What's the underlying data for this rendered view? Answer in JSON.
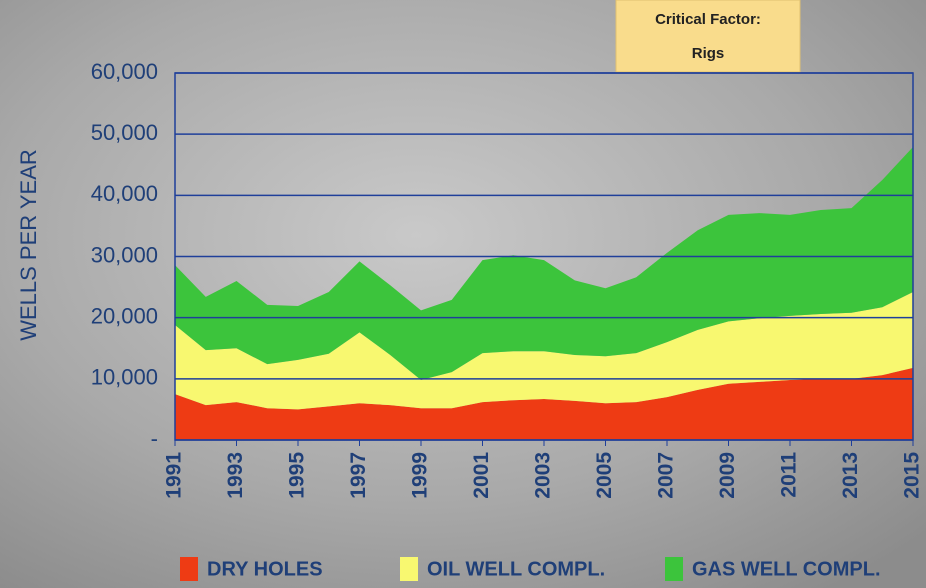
{
  "chart_data": {
    "type": "stacked-area",
    "ylabel": "WELLS PER YEAR",
    "annotation": {
      "title": "Critical Factor:",
      "text": "Rigs"
    },
    "x": [
      1991,
      1992,
      1993,
      1994,
      1995,
      1996,
      1997,
      1998,
      1999,
      2000,
      2001,
      2002,
      2003,
      2004,
      2005,
      2006,
      2007,
      2008,
      2009,
      2010,
      2011,
      2012,
      2013,
      2014,
      2015
    ],
    "xlim": [
      1991,
      2015
    ],
    "xticks": [
      1991,
      1993,
      1995,
      1997,
      1999,
      2001,
      2003,
      2005,
      2007,
      2009,
      2011,
      2013,
      2015
    ],
    "ylim": [
      0,
      60000
    ],
    "yticks": [
      {
        "value": 0,
        "label": "-"
      },
      {
        "value": 10000,
        "label": "10,000"
      },
      {
        "value": 20000,
        "label": "20,000"
      },
      {
        "value": 30000,
        "label": "30,000"
      },
      {
        "value": 40000,
        "label": "40,000"
      },
      {
        "value": 50000,
        "label": "50,000"
      },
      {
        "value": 60000,
        "label": "60,000"
      }
    ],
    "grid": true,
    "series": [
      {
        "name": "DRY HOLES",
        "color": "#ee3b14",
        "values": [
          7500,
          5700,
          6200,
          5200,
          5000,
          5500,
          6000,
          5700,
          5200,
          5200,
          6200,
          6500,
          6700,
          6400,
          6000,
          6200,
          7000,
          8200,
          9200,
          9500,
          9800,
          10000,
          10000,
          10600,
          11800
        ]
      },
      {
        "name": "OIL WELL COMPL.",
        "color": "#f8f870",
        "values": [
          11300,
          9000,
          8800,
          7200,
          8100,
          8600,
          11600,
          8200,
          4600,
          5900,
          8000,
          8000,
          7800,
          7500,
          7700,
          8000,
          9000,
          9800,
          10200,
          10400,
          10500,
          10600,
          10800,
          11100,
          12400
        ]
      },
      {
        "name": "GAS WELL COMPL.",
        "color": "#3cc43c",
        "values": [
          9800,
          8700,
          11000,
          9700,
          8800,
          10100,
          11600,
          11400,
          11400,
          11800,
          15200,
          15700,
          14900,
          12200,
          11100,
          12400,
          14600,
          16300,
          17400,
          17200,
          16500,
          17000,
          17100,
          20800,
          23700
        ]
      }
    ]
  }
}
